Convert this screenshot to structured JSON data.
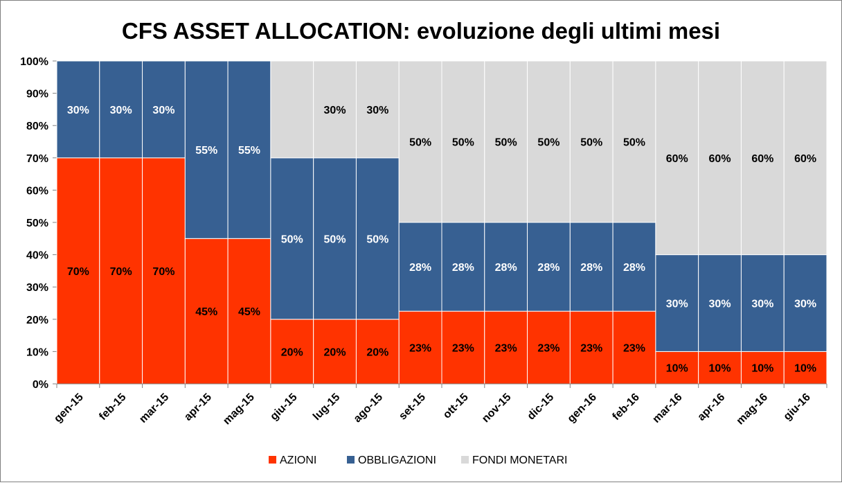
{
  "chart_data": {
    "type": "bar",
    "stacked": true,
    "title": "CFS ASSET ALLOCATION: evoluzione degli ultimi mesi",
    "xlabel": "",
    "ylabel": "",
    "ylim": [
      0,
      100
    ],
    "yticks": [
      "0%",
      "10%",
      "20%",
      "30%",
      "40%",
      "50%",
      "60%",
      "70%",
      "80%",
      "90%",
      "100%"
    ],
    "grid": false,
    "legend_position": "bottom",
    "categories": [
      "gen-15",
      "feb-15",
      "mar-15",
      "apr-15",
      "mag-15",
      "giu-15",
      "lug-15",
      "ago-15",
      "set-15",
      "ott-15",
      "nov-15",
      "dic-15",
      "gen-16",
      "feb-16",
      "mar-16",
      "apr-16",
      "mag-16",
      "giu-16"
    ],
    "series": [
      {
        "name": "AZIONI",
        "color": "#ff3300",
        "label_color": "#000000",
        "values": [
          70,
          70,
          70,
          45,
          45,
          20,
          20,
          20,
          22.5,
          22.5,
          22.5,
          22.5,
          22.5,
          22.5,
          10,
          10,
          10,
          10
        ],
        "labels": [
          "70%",
          "70%",
          "70%",
          "45%",
          "45%",
          "20%",
          "20%",
          "20%",
          "23%",
          "23%",
          "23%",
          "23%",
          "23%",
          "23%",
          "10%",
          "10%",
          "10%",
          "10%"
        ]
      },
      {
        "name": "OBBLIGAZIONI",
        "color": "#376092",
        "label_color": "#ffffff",
        "values": [
          30,
          30,
          30,
          55,
          55,
          50,
          50,
          50,
          27.5,
          27.5,
          27.5,
          27.5,
          27.5,
          27.5,
          30,
          30,
          30,
          30
        ],
        "labels": [
          "30%",
          "30%",
          "30%",
          "55%",
          "55%",
          "50%",
          "50%",
          "50%",
          "28%",
          "28%",
          "28%",
          "28%",
          "28%",
          "28%",
          "30%",
          "30%",
          "30%",
          "30%"
        ]
      },
      {
        "name": "FONDI MONETARI",
        "color": "#d9d9d9",
        "label_color": "#000000",
        "values": [
          0,
          0,
          0,
          0,
          0,
          30,
          30,
          30,
          50,
          50,
          50,
          50,
          50,
          50,
          60,
          60,
          60,
          60
        ],
        "labels": [
          "",
          "",
          "",
          "",
          "",
          "",
          "30%",
          "30%",
          "50%",
          "50%",
          "50%",
          "50%",
          "50%",
          "50%",
          "60%",
          "60%",
          "60%",
          "60%"
        ]
      }
    ]
  }
}
